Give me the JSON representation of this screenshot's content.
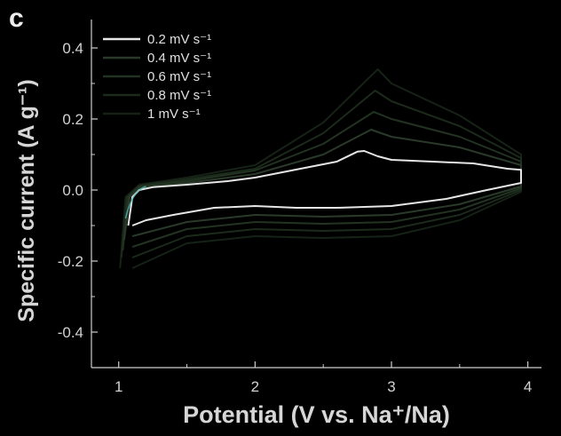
{
  "panel_label": "c",
  "chart_data": {
    "type": "line",
    "title": "",
    "xlabel": "Potential (V vs. Na⁺/Na)",
    "ylabel": "Specific current  (A g⁻¹)",
    "xlim": [
      0.8,
      4.1
    ],
    "ylim": [
      -0.5,
      0.48
    ],
    "xticks": [
      1,
      2,
      3,
      4
    ],
    "yticks": [
      -0.4,
      -0.2,
      0.0,
      0.2,
      0.4
    ],
    "xtick_labels": [
      "1",
      "2",
      "3",
      "4"
    ],
    "ytick_labels": [
      "-0.4",
      "-0.2",
      "0.0",
      "0.2",
      "0.4"
    ],
    "legend_position": "top-left",
    "grid": false,
    "series": [
      {
        "name": "0.2 mV s⁻¹",
        "color": "#e6e6e6",
        "anodic": [
          [
            1.07,
            -0.1
          ],
          [
            1.1,
            -0.02
          ],
          [
            1.15,
            0.0
          ],
          [
            1.25,
            0.008
          ],
          [
            1.5,
            0.015
          ],
          [
            1.8,
            0.025
          ],
          [
            2.0,
            0.035
          ],
          [
            2.2,
            0.05
          ],
          [
            2.4,
            0.065
          ],
          [
            2.6,
            0.08
          ],
          [
            2.75,
            0.108
          ],
          [
            2.8,
            0.11
          ],
          [
            2.9,
            0.095
          ],
          [
            3.0,
            0.085
          ],
          [
            3.3,
            0.08
          ],
          [
            3.6,
            0.075
          ],
          [
            3.85,
            0.06
          ],
          [
            3.95,
            0.057
          ]
        ],
        "cathodic": [
          [
            3.95,
            0.02
          ],
          [
            3.7,
            0.0
          ],
          [
            3.4,
            -0.025
          ],
          [
            3.0,
            -0.045
          ],
          [
            2.6,
            -0.05
          ],
          [
            2.3,
            -0.05
          ],
          [
            2.0,
            -0.045
          ],
          [
            1.7,
            -0.05
          ],
          [
            1.4,
            -0.07
          ],
          [
            1.2,
            -0.085
          ],
          [
            1.1,
            -0.1
          ]
        ]
      },
      {
        "name": "0.4 mV s⁻¹",
        "color": "#2a3a2a",
        "anodic": [
          [
            1.04,
            -0.14
          ],
          [
            1.08,
            -0.02
          ],
          [
            1.15,
            0.005
          ],
          [
            1.5,
            0.02
          ],
          [
            2.0,
            0.045
          ],
          [
            2.5,
            0.1
          ],
          [
            2.85,
            0.17
          ],
          [
            3.0,
            0.15
          ],
          [
            3.5,
            0.12
          ],
          [
            3.95,
            0.07
          ]
        ],
        "cathodic": [
          [
            3.95,
            0.01
          ],
          [
            3.5,
            -0.04
          ],
          [
            3.0,
            -0.07
          ],
          [
            2.5,
            -0.075
          ],
          [
            2.0,
            -0.07
          ],
          [
            1.5,
            -0.09
          ],
          [
            1.1,
            -0.13
          ]
        ]
      },
      {
        "name": "0.6 mV s⁻¹",
        "color": "#223322",
        "anodic": [
          [
            1.03,
            -0.17
          ],
          [
            1.07,
            -0.02
          ],
          [
            1.15,
            0.01
          ],
          [
            1.5,
            0.025
          ],
          [
            2.0,
            0.055
          ],
          [
            2.5,
            0.13
          ],
          [
            2.87,
            0.22
          ],
          [
            3.0,
            0.2
          ],
          [
            3.5,
            0.15
          ],
          [
            3.95,
            0.08
          ]
        ],
        "cathodic": [
          [
            3.95,
            0.005
          ],
          [
            3.5,
            -0.055
          ],
          [
            3.0,
            -0.09
          ],
          [
            2.5,
            -0.095
          ],
          [
            2.0,
            -0.09
          ],
          [
            1.5,
            -0.11
          ],
          [
            1.1,
            -0.16
          ]
        ]
      },
      {
        "name": "0.8 mV s⁻¹",
        "color": "#1c2a1c",
        "anodic": [
          [
            1.02,
            -0.19
          ],
          [
            1.06,
            -0.02
          ],
          [
            1.15,
            0.012
          ],
          [
            1.5,
            0.03
          ],
          [
            2.0,
            0.06
          ],
          [
            2.5,
            0.16
          ],
          [
            2.88,
            0.28
          ],
          [
            3.0,
            0.25
          ],
          [
            3.5,
            0.18
          ],
          [
            3.95,
            0.09
          ]
        ],
        "cathodic": [
          [
            3.95,
            0.0
          ],
          [
            3.5,
            -0.07
          ],
          [
            3.0,
            -0.11
          ],
          [
            2.5,
            -0.115
          ],
          [
            2.0,
            -0.11
          ],
          [
            1.5,
            -0.13
          ],
          [
            1.1,
            -0.19
          ]
        ]
      },
      {
        "name": "1  mV s⁻¹",
        "color": "#162216",
        "anodic": [
          [
            1.01,
            -0.22
          ],
          [
            1.05,
            -0.02
          ],
          [
            1.15,
            0.015
          ],
          [
            1.5,
            0.035
          ],
          [
            2.0,
            0.07
          ],
          [
            2.5,
            0.19
          ],
          [
            2.9,
            0.34
          ],
          [
            3.0,
            0.3
          ],
          [
            3.5,
            0.21
          ],
          [
            3.95,
            0.1
          ]
        ],
        "cathodic": [
          [
            3.95,
            -0.005
          ],
          [
            3.5,
            -0.085
          ],
          [
            3.0,
            -0.13
          ],
          [
            2.5,
            -0.135
          ],
          [
            2.0,
            -0.13
          ],
          [
            1.5,
            -0.15
          ],
          [
            1.1,
            -0.22
          ]
        ]
      }
    ]
  }
}
